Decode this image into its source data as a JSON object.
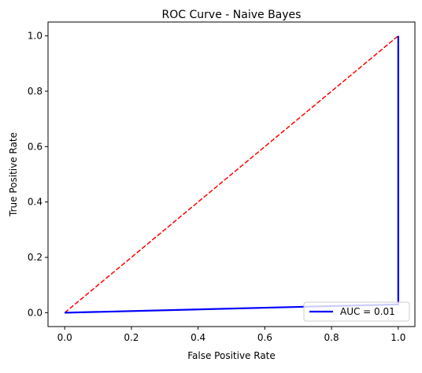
{
  "chart_data": {
    "type": "line",
    "title": "ROC Curve - Naive Bayes",
    "xlabel": "False Positive Rate",
    "ylabel": "True Positive Rate",
    "xlim": [
      -0.05,
      1.05
    ],
    "ylim": [
      -0.05,
      1.05
    ],
    "xticks": [
      0.0,
      0.2,
      0.4,
      0.6,
      0.8,
      1.0
    ],
    "yticks": [
      0.0,
      0.2,
      0.4,
      0.6,
      0.8,
      1.0
    ],
    "xtick_labels": [
      "0.0",
      "0.2",
      "0.4",
      "0.6",
      "0.8",
      "1.0"
    ],
    "ytick_labels": [
      "0.0",
      "0.2",
      "0.4",
      "0.6",
      "0.8",
      "1.0"
    ],
    "grid": false,
    "legend_position": "lower right",
    "series": [
      {
        "name": "AUC = 0.01",
        "x": [
          0.0,
          1.0,
          1.0
        ],
        "y": [
          0.0,
          0.03,
          1.0
        ],
        "color": "#0000ff",
        "style": "solid"
      },
      {
        "x": [
          0.0,
          1.0
        ],
        "y": [
          0.0,
          1.0
        ],
        "color": "#ff0000",
        "style": "dashed"
      }
    ]
  }
}
